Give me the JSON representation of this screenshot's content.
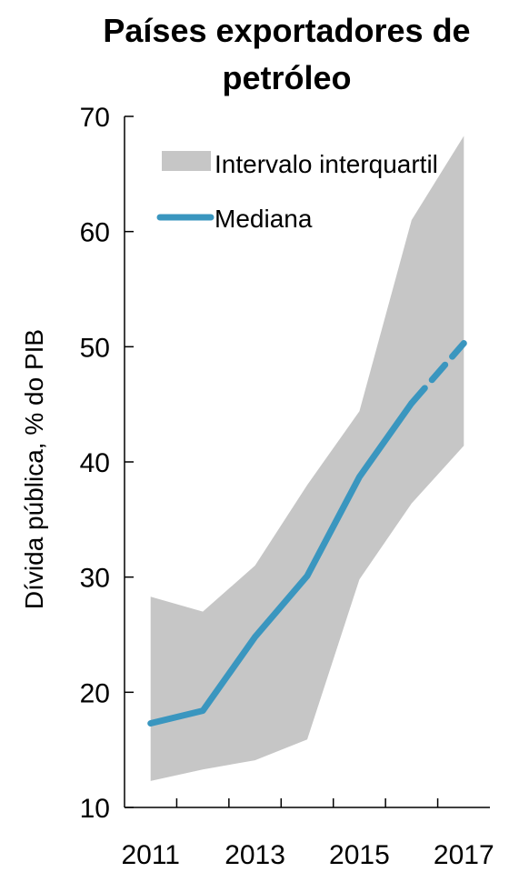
{
  "chart_data": {
    "type": "area",
    "title": "Países exportadores de petróleo",
    "xlabel": "",
    "ylabel": "Dívida pública, % do PIB",
    "ylim": [
      10,
      70
    ],
    "yticks": [
      10,
      20,
      30,
      40,
      50,
      60,
      70
    ],
    "xlim": [
      2010.5,
      2017.5
    ],
    "xtick_labels": [
      "2011",
      "2013",
      "2015",
      "2017"
    ],
    "grid": false,
    "legend_position": "top-left",
    "series": [
      {
        "name": "Intervalo interquartil",
        "kind": "band",
        "color": "#c6c6c6",
        "x": [
          2011,
          2012,
          2013,
          2014,
          2015,
          2016,
          2017
        ],
        "lower": [
          12.3,
          13.3,
          14.1,
          15.9,
          29.8,
          36.4,
          41.4
        ],
        "upper": [
          28.3,
          27.0,
          31.0,
          38.0,
          44.4,
          61.0,
          68.3
        ]
      },
      {
        "name": "Mediana",
        "kind": "line",
        "color": "#3a96bf",
        "x": [
          2011,
          2012,
          2013,
          2014,
          2015,
          2016,
          2017
        ],
        "values": [
          17.3,
          18.4,
          24.8,
          30.1,
          38.7,
          45.1,
          50.3
        ],
        "projected_from_index": 5
      }
    ]
  }
}
